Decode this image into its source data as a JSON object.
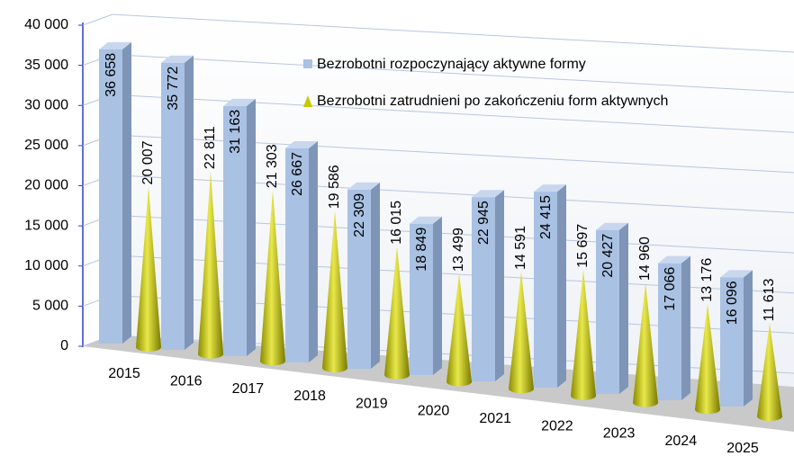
{
  "chart_data": {
    "type": "bar3d",
    "categories": [
      "2015",
      "2016",
      "2017",
      "2018",
      "2019",
      "2020",
      "2021",
      "2022",
      "2023",
      "2024",
      "2025"
    ],
    "series": [
      {
        "name": "Bezrobotni rozpoczynający aktywne formy",
        "color": "#a9c1e3",
        "shape": "box",
        "values": [
          36658,
          35772,
          31163,
          26667,
          22309,
          18849,
          22945,
          24415,
          20427,
          17066,
          16096
        ],
        "value_labels": [
          "36 658",
          "35 772",
          "31 163",
          "26 667",
          "22 309",
          "18 849",
          "22 945",
          "24 415",
          "20 427",
          "17 066",
          "16 096"
        ]
      },
      {
        "name": "Bezrobotni zatrudnieni po zakończeniu form aktywnych",
        "color": "#c8c800",
        "shape": "cone",
        "values": [
          20007,
          22811,
          21303,
          19586,
          16015,
          13499,
          14591,
          15697,
          14960,
          13176,
          11613
        ],
        "value_labels": [
          "20 007",
          "22 811",
          "21 303",
          "19 586",
          "16 015",
          "13 499",
          "14 591",
          "15 697",
          "14 960",
          "13 176",
          "11 613"
        ]
      }
    ],
    "ylim": [
      0,
      40000
    ],
    "yticks": [
      0,
      {
        "value": 5000,
        "label": "5 000"
      },
      {
        "value": 10000,
        "label": "10 000"
      },
      {
        "value": 15000,
        "label": "15 000"
      },
      {
        "value": 20000,
        "label": "20 000"
      },
      {
        "value": 25000,
        "label": "25 000"
      },
      {
        "value": 30000,
        "label": "30 000"
      },
      {
        "value": 35000,
        "label": "35 000"
      },
      {
        "value": 40000,
        "label": "40 000"
      }
    ],
    "grid": true,
    "legend": "top-right"
  }
}
